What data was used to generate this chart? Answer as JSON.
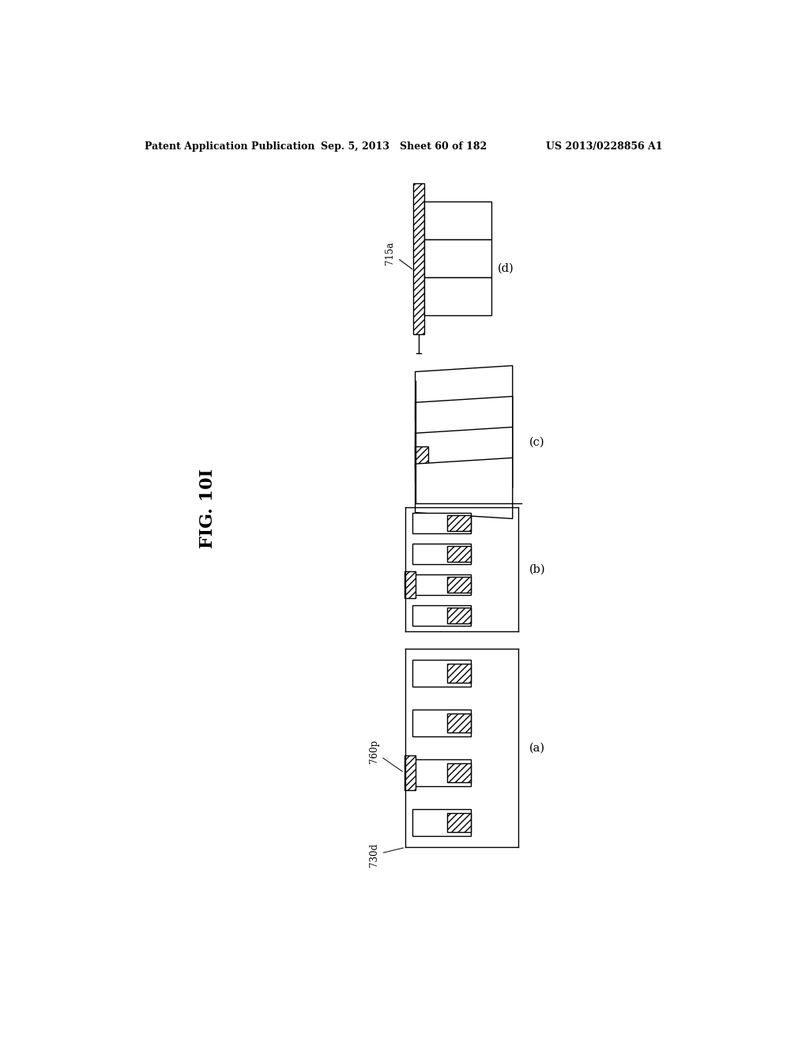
{
  "title_left": "Patent Application Publication",
  "title_center": "Sep. 5, 2013   Sheet 60 of 182",
  "title_right": "US 2013/0228856 A1",
  "fig_label": "FIG. 10I",
  "sub_labels": [
    "(a)",
    "(b)",
    "(c)",
    "(d)"
  ],
  "label_715a": "715a",
  "label_760p": "760p",
  "label_730d": "730d",
  "bg_color": "#ffffff",
  "line_color": "#000000"
}
